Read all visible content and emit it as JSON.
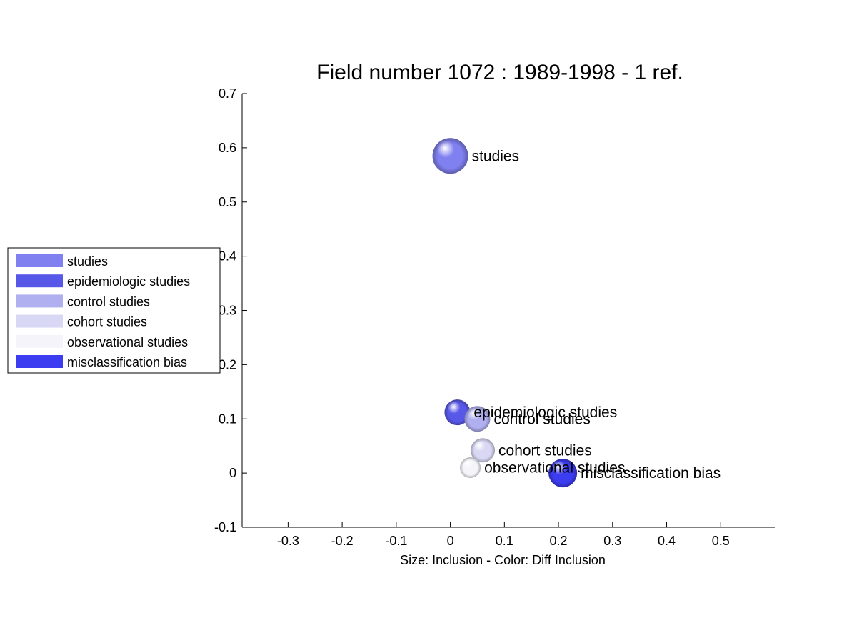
{
  "chart_data": {
    "type": "scatter",
    "title": "Field number 1072 : 1989-1998  - 1 ref.",
    "xlabel": "Size: Inclusion - Color: Diff Inclusion",
    "ylabel": "",
    "xlim": [
      -0.385,
      0.6
    ],
    "ylim": [
      -0.1,
      0.7
    ],
    "xticks": [
      "-0.3",
      "-0.2",
      "-0.1",
      "0",
      "0.1",
      "0.2",
      "0.3",
      "0.4",
      "0.5"
    ],
    "xtick_values": [
      -0.3,
      -0.2,
      -0.1,
      0,
      0.1,
      0.2,
      0.3,
      0.4,
      0.5
    ],
    "yticks": [
      "-0.1",
      "0",
      "0.1",
      "0.2",
      "0.3",
      "0.4",
      "0.5",
      "0.6",
      "0.7"
    ],
    "ytick_values": [
      -0.1,
      0,
      0.1,
      0.2,
      0.3,
      0.4,
      0.5,
      0.6,
      0.7
    ],
    "grid": false,
    "legend_position": "left",
    "points": [
      {
        "label": "studies",
        "x": 0.0,
        "y": 0.585,
        "size": 1.0,
        "color": "#8080f0"
      },
      {
        "label": "epidemiologic studies",
        "x": 0.013,
        "y": 0.112,
        "size": 0.72,
        "color": "#5858e8"
      },
      {
        "label": "control studies",
        "x": 0.05,
        "y": 0.1,
        "size": 0.72,
        "color": "#b0b0f0"
      },
      {
        "label": "cohort studies",
        "x": 0.06,
        "y": 0.042,
        "size": 0.68,
        "color": "#d8d8f4"
      },
      {
        "label": "observational studies",
        "x": 0.037,
        "y": 0.01,
        "size": 0.58,
        "color": "#f4f4fa"
      },
      {
        "label": "misclassification bias",
        "x": 0.208,
        "y": 0.0,
        "size": 0.8,
        "color": "#3c3cf0"
      }
    ]
  },
  "legend": {
    "items": [
      {
        "label": "studies",
        "color": "#8080f0"
      },
      {
        "label": "epidemiologic studies",
        "color": "#5858e8"
      },
      {
        "label": "control studies",
        "color": "#b0b0f0"
      },
      {
        "label": "cohort studies",
        "color": "#d8d8f4"
      },
      {
        "label": "observational studies",
        "color": "#f4f4fa"
      },
      {
        "label": "misclassification bias",
        "color": "#3c3cf0"
      }
    ]
  }
}
